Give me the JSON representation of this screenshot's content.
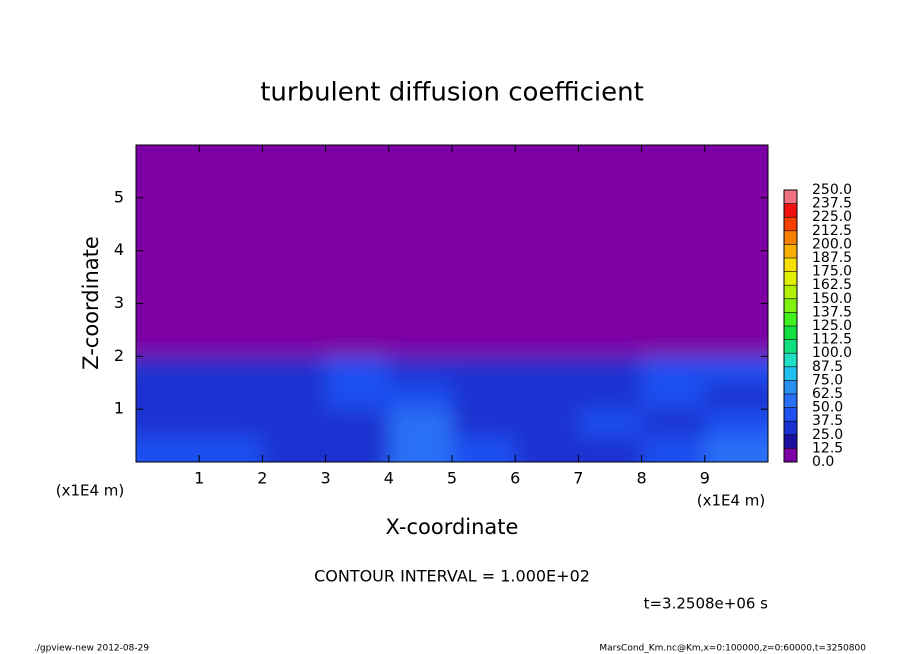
{
  "chart_data": {
    "type": "heatmap",
    "title": "turbulent diffusion coefficient",
    "xlabel": "X-coordinate",
    "ylabel": "Z-coordinate",
    "xunit": "(x1E4 m)",
    "yunit": "(x1E4 m)",
    "xlim": [
      0,
      10
    ],
    "xticks": [
      1,
      2,
      3,
      4,
      5,
      6,
      7,
      8,
      9
    ],
    "ylim": [
      0,
      6
    ],
    "yticks": [
      1,
      2,
      3,
      4,
      5
    ],
    "values": [
      [
        45,
        40,
        30,
        35,
        60,
        40,
        30,
        35,
        40,
        55
      ],
      [
        35,
        30,
        30,
        30,
        50,
        35,
        25,
        40,
        35,
        45
      ],
      [
        30,
        28,
        30,
        40,
        45,
        30,
        28,
        30,
        40,
        35
      ],
      [
        30,
        30,
        35,
        40,
        35,
        25,
        30,
        30,
        40,
        45
      ],
      [
        0,
        0,
        0,
        0,
        0,
        0,
        0,
        0,
        0,
        0
      ],
      [
        0,
        0,
        0,
        0,
        0,
        0,
        0,
        0,
        0,
        0
      ],
      [
        0,
        0,
        0,
        0,
        0,
        0,
        0,
        0,
        0,
        0
      ],
      [
        0,
        0,
        0,
        0,
        0,
        0,
        0,
        0,
        0,
        0
      ],
      [
        0,
        0,
        0,
        0,
        0,
        0,
        0,
        0,
        0,
        0
      ],
      [
        0,
        0,
        0,
        0,
        0,
        0,
        0,
        0,
        0,
        0
      ],
      [
        0,
        0,
        0,
        0,
        0,
        0,
        0,
        0,
        0,
        0
      ],
      [
        0,
        0,
        0,
        0,
        0,
        0,
        0,
        0,
        0,
        0
      ]
    ],
    "levels": [
      {
        "value": 0,
        "label": "0.0"
      },
      12.5,
      {
        "value": 25,
        "label": "25.0"
      },
      37.5,
      {
        "value": 50,
        "label": "50.0"
      },
      62.5,
      {
        "value": 75,
        "label": "75.0"
      },
      87.5,
      {
        "value": 100,
        "label": "100.0"
      },
      112.5,
      {
        "value": 125,
        "label": "125.0"
      },
      137.5,
      {
        "value": 150,
        "label": "150.0"
      },
      162.5,
      {
        "value": 175,
        "label": "175.0"
      },
      187.5,
      {
        "value": 200,
        "label": "200.0"
      },
      212.5,
      {
        "value": 225,
        "label": "225.0"
      },
      237.5,
      {
        "value": 250,
        "label": "250.0"
      }
    ],
    "colors": [
      "#7d00a5",
      "#1a10a0",
      "#1a30d0",
      "#1f50f0",
      "#2a70f5",
      "#2a90f0",
      "#20c0f0",
      "#20e0c8",
      "#10e080",
      "#10e040",
      "#40f020",
      "#80f010",
      "#b0f000",
      "#e0f000",
      "#f8e000",
      "#f8b000",
      "#f88000",
      "#f84000",
      "#f01010",
      "#f07080"
    ],
    "annotation": "CONTOUR INTERVAL = 1.000E+02",
    "time": "t=3.2508e+06 s",
    "footer_left": "./gpview-new  2012-08-29",
    "footer_right": "MarsCond_Km.nc@Km,x=0:100000,z=0:60000,t=3250800"
  }
}
